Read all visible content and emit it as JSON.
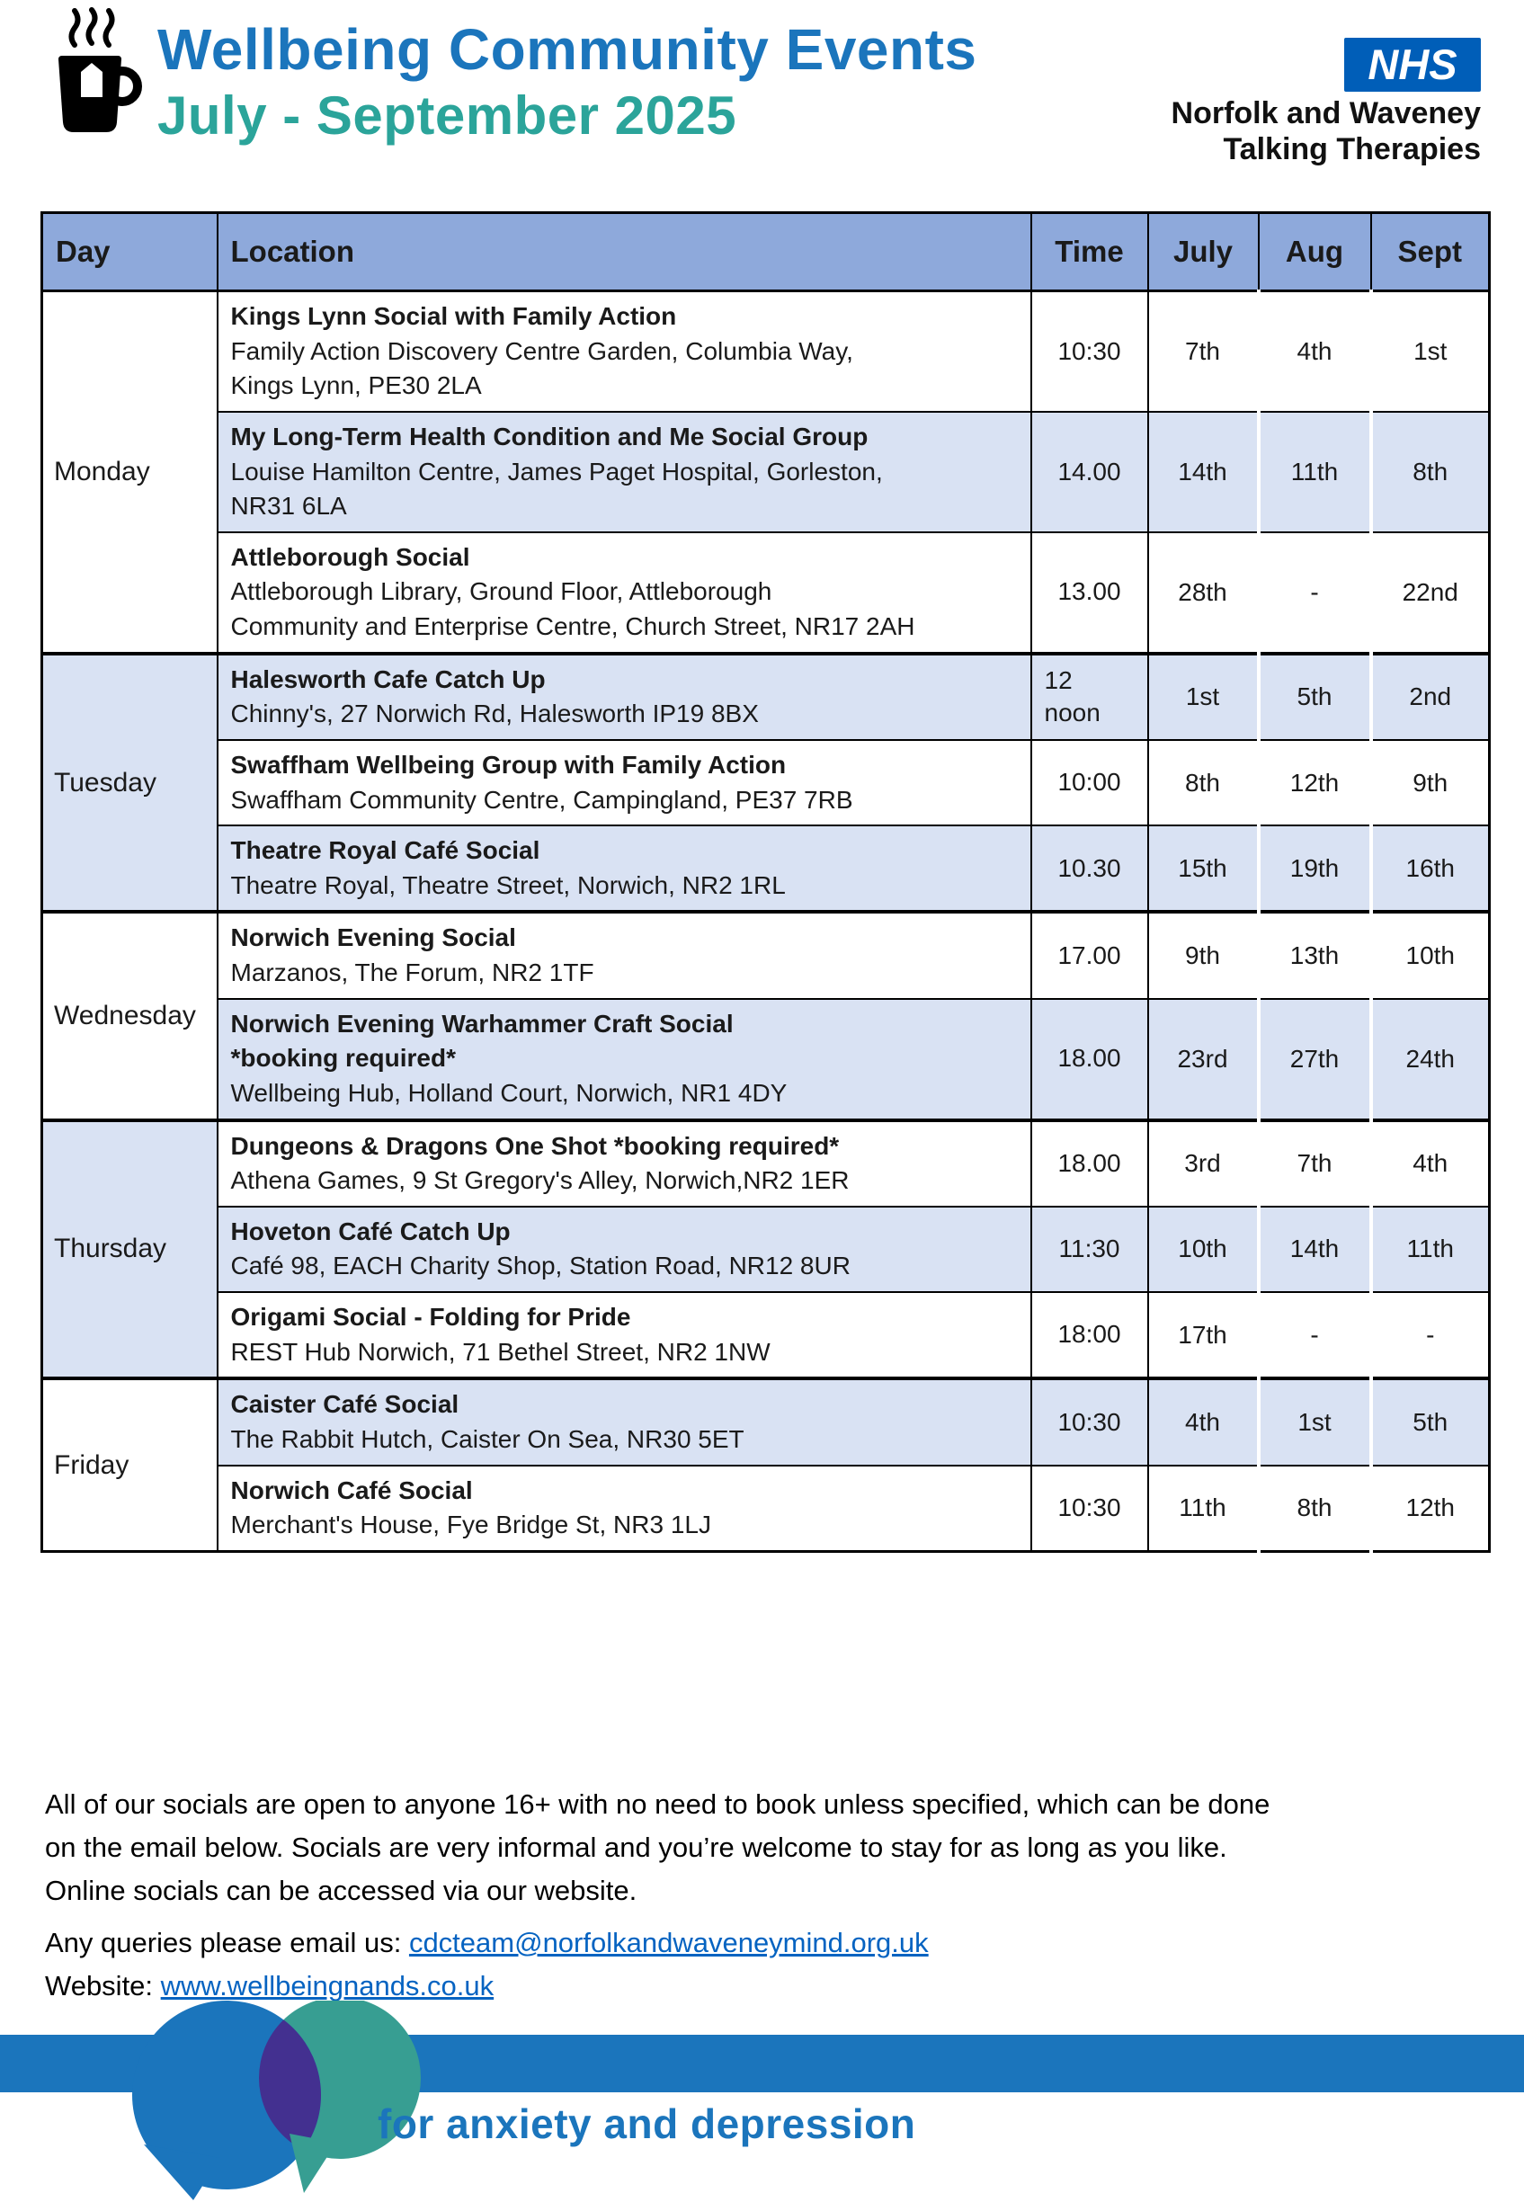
{
  "header": {
    "title_line1": "Wellbeing Community Events",
    "title_line2": "July - September 2025",
    "nhs": {
      "logo": "NHS",
      "org_line1": "Norfolk and Waveney",
      "org_line2": "Talking Therapies"
    }
  },
  "table": {
    "headers": {
      "day": "Day",
      "location": "Location",
      "time": "Time",
      "july": "July",
      "aug": "Aug",
      "sept": "Sept"
    },
    "groups": [
      {
        "day": "Monday",
        "events": [
          {
            "title": "Kings Lynn Social with Family Action",
            "address": "Family Action Discovery Centre Garden, Columbia Way,\nKings Lynn, PE30 2LA",
            "time": "10:30",
            "july": "7th",
            "aug": "4th",
            "sept": "1st"
          },
          {
            "title": "My Long-Term Health Condition and Me Social Group",
            "address": "Louise Hamilton Centre, James Paget Hospital, Gorleston,\nNR31 6LA",
            "time": "14.00",
            "july": "14th",
            "aug": "11th",
            "sept": "8th"
          },
          {
            "title": "Attleborough Social",
            "address": "Attleborough Library, Ground Floor, Attleborough\nCommunity and Enterprise Centre, Church Street, NR17 2AH",
            "time": "13.00",
            "july": "28th",
            "aug": "-",
            "sept": "22nd"
          }
        ]
      },
      {
        "day": "Tuesday",
        "events": [
          {
            "title": "Halesworth Cafe Catch Up",
            "address": "Chinny's, 27 Norwich Rd, Halesworth IP19 8BX",
            "time": "12\nnoon",
            "july": "1st",
            "aug": "5th",
            "sept": "2nd"
          },
          {
            "title": "Swaffham Wellbeing Group with Family Action",
            "address": "Swaffham Community Centre, Campingland, PE37 7RB",
            "time": "10:00",
            "july": "8th",
            "aug": "12th",
            "sept": "9th"
          },
          {
            "title": "Theatre Royal Café Social",
            "address": "Theatre Royal, Theatre Street, Norwich, NR2 1RL",
            "time": "10.30",
            "july": "15th",
            "aug": "19th",
            "sept": "16th"
          }
        ]
      },
      {
        "day": "Wednesday",
        "events": [
          {
            "title": "Norwich Evening Social",
            "address": "Marzanos, The Forum, NR2 1TF",
            "time": "17.00",
            "july": "9th",
            "aug": "13th",
            "sept": "10th"
          },
          {
            "title": "Norwich Evening Warhammer Craft Social\n*booking required*",
            "address": "Wellbeing Hub, Holland Court, Norwich, NR1 4DY",
            "time": "18.00",
            "july": "23rd",
            "aug": "27th",
            "sept": "24th"
          }
        ]
      },
      {
        "day": "Thursday",
        "events": [
          {
            "title": "Dungeons & Dragons One Shot *booking required*",
            "address": "Athena Games, 9 St Gregory's Alley, Norwich,NR2 1ER",
            "time": "18.00",
            "july": "3rd",
            "aug": "7th",
            "sept": "4th"
          },
          {
            "title": "Hoveton Café Catch Up",
            "address": "Café 98, EACH Charity Shop, Station Road, NR12 8UR",
            "time": "11:30",
            "july": "10th",
            "aug": "14th",
            "sept": "11th"
          },
          {
            "title": "Origami Social - Folding for Pride",
            "address": "REST Hub Norwich, 71 Bethel Street, NR2 1NW",
            "time": "18:00",
            "july": "17th",
            "aug": "-",
            "sept": "-"
          }
        ]
      },
      {
        "day": "Friday",
        "events": [
          {
            "title": "Caister Café Social",
            "address": "The Rabbit Hutch, Caister On Sea, NR30 5ET",
            "time": "10:30",
            "july": "4th",
            "aug": "1st",
            "sept": "5th"
          },
          {
            "title": "Norwich Café Social",
            "address": "Merchant's House, Fye Bridge St, NR3 1LJ",
            "time": "10:30",
            "july": "11th",
            "aug": "8th",
            "sept": "12th"
          }
        ]
      }
    ]
  },
  "notes": {
    "paragraph": "All of our socials are open to anyone 16+ with no need to book unless specified, which can be done\non the email below. Socials are very informal and you’re welcome to stay for as long as you like.\nOnline socials can be accessed via our website.",
    "queries_label": "Any queries please email us: ",
    "email": "cdcteam@norfolkandwaveneymind.org.uk",
    "website_label": "Website: ",
    "website": "www.wellbeingnands.co.uk"
  },
  "footer": {
    "tagline": "for anxiety and depression"
  },
  "colors": {
    "title_blue": "#1B75BC",
    "title_teal": "#2BA49A",
    "nhs_blue": "#005EB8",
    "table_header_bg": "#8EA9DB",
    "row_alt_blue": "#D9E2F3",
    "link_blue": "#0563C1",
    "bubble_teal": "#379E92",
    "bubble_overlap_purple": "#433090"
  }
}
